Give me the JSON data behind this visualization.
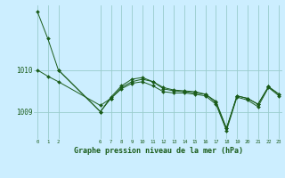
{
  "bg_color": "#cceeff",
  "grid_color": "#99cccc",
  "line_color": "#1a5c1a",
  "title": "Graphe pression niveau de la mer (hPa)",
  "xlim": [
    -0.3,
    23.3
  ],
  "ylim": [
    1008.35,
    1011.55
  ],
  "yticks": [
    1009,
    1010
  ],
  "xticks": [
    0,
    1,
    2,
    6,
    7,
    8,
    9,
    10,
    11,
    12,
    13,
    14,
    15,
    16,
    17,
    18,
    19,
    20,
    21,
    22,
    23
  ],
  "series": [
    {
      "x": [
        0,
        1,
        2,
        6,
        7,
        8,
        9,
        10,
        11,
        12,
        13,
        14,
        15,
        16,
        17,
        18,
        19,
        20,
        21,
        22,
        23
      ],
      "y": [
        1011.4,
        1010.75,
        1010.0,
        1009.0,
        1009.32,
        1009.58,
        1009.72,
        1009.78,
        1009.72,
        1009.55,
        1009.5,
        1009.48,
        1009.45,
        1009.42,
        1009.25,
        1008.6,
        1009.38,
        1009.32,
        1009.18,
        1009.6,
        1009.42
      ]
    },
    {
      "x": [
        2,
        6,
        7,
        8,
        9,
        10,
        11,
        12,
        13,
        14,
        15,
        16,
        17,
        18,
        19,
        20,
        21,
        22,
        23
      ],
      "y": [
        1010.0,
        1009.0,
        1009.35,
        1009.62,
        1009.78,
        1009.82,
        1009.72,
        1009.58,
        1009.52,
        1009.5,
        1009.48,
        1009.42,
        1009.22,
        1008.6,
        1009.38,
        1009.32,
        1009.18,
        1009.6,
        1009.42
      ]
    },
    {
      "x": [
        0,
        1,
        2,
        6,
        7,
        8,
        9,
        10,
        11,
        12,
        13,
        14,
        15,
        16,
        17,
        18,
        19,
        20,
        21,
        22,
        23
      ],
      "y": [
        1010.0,
        1009.85,
        1009.72,
        1009.15,
        1009.32,
        1009.55,
        1009.68,
        1009.72,
        1009.62,
        1009.48,
        1009.45,
        1009.45,
        1009.42,
        1009.38,
        1009.18,
        1008.55,
        1009.35,
        1009.28,
        1009.12,
        1009.58,
        1009.38
      ]
    }
  ]
}
